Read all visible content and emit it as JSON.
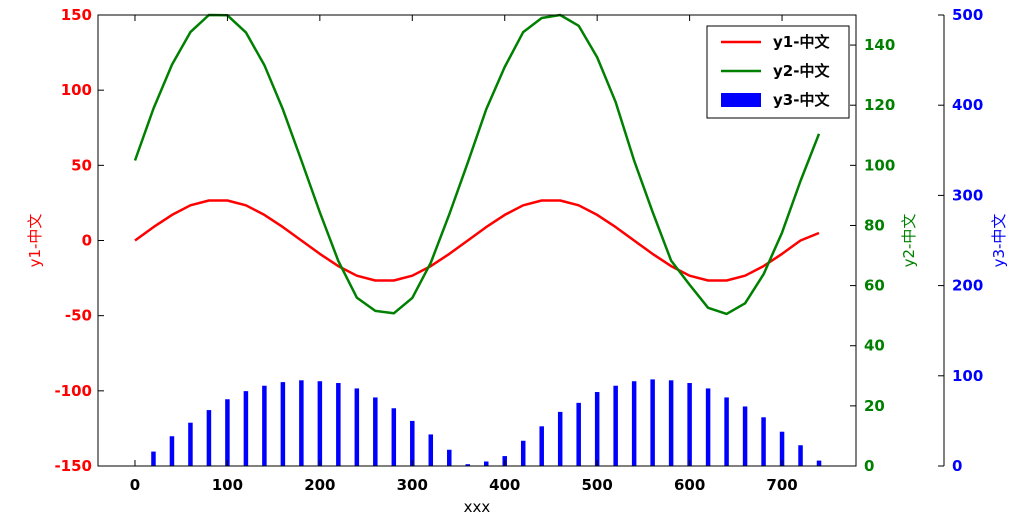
{
  "chart_data": {
    "type": "line",
    "xlabel": "xxx",
    "xlim": [
      -40,
      780
    ],
    "xticks": [
      0,
      100,
      200,
      300,
      400,
      500,
      600,
      700
    ],
    "series": [
      {
        "name": "y1-中文",
        "type": "line",
        "axis": "y1",
        "color": "#ff0000",
        "x": [
          0,
          20,
          40,
          60,
          80,
          100,
          120,
          140,
          160,
          180,
          200,
          220,
          240,
          260,
          280,
          300,
          320,
          340,
          360,
          380,
          400,
          420,
          440,
          460,
          480,
          500,
          520,
          540,
          560,
          580,
          600,
          620,
          640,
          660,
          680,
          700,
          720,
          740
        ],
        "values": [
          0.0,
          8.9,
          17.0,
          23.4,
          26.6,
          26.6,
          23.4,
          17.0,
          8.9,
          0.0,
          -8.9,
          -17.0,
          -23.4,
          -26.6,
          -26.6,
          -23.4,
          -17.0,
          -8.9,
          0.0,
          8.9,
          17.0,
          23.4,
          26.6,
          26.6,
          23.4,
          17.0,
          8.9,
          0.0,
          -8.9,
          -17.0,
          -23.4,
          -26.6,
          -26.6,
          -23.4,
          -17.0,
          -8.9,
          0.0,
          5.0
        ]
      },
      {
        "name": "y2-中文",
        "type": "line",
        "axis": "y2",
        "color": "#008000",
        "x": [
          0,
          20,
          40,
          60,
          80,
          100,
          120,
          140,
          160,
          180,
          200,
          220,
          240,
          260,
          280,
          300,
          320,
          340,
          360,
          380,
          400,
          420,
          440,
          460,
          480,
          500,
          520,
          540,
          560,
          580,
          600,
          620,
          640,
          660,
          680,
          700,
          720,
          740
        ],
        "values": [
          101.6,
          118.9,
          133.5,
          144.3,
          150.0,
          149.9,
          144.2,
          133.3,
          118.6,
          101.6,
          84.3,
          68.2,
          56.0,
          51.6,
          50.8,
          55.9,
          67.6,
          83.7,
          100.9,
          118.6,
          132.7,
          144.3,
          149.0,
          150.0,
          146.4,
          135.9,
          121.0,
          101.6,
          84.5,
          68.3,
          60.3,
          52.6,
          50.6,
          54.1,
          63.8,
          77.6,
          94.8,
          110.5
        ]
      },
      {
        "name": "y3-中文",
        "type": "bar",
        "axis": "y3",
        "color": "#0000ff",
        "x": [
          0,
          20,
          40,
          60,
          80,
          100,
          120,
          140,
          160,
          180,
          200,
          220,
          240,
          260,
          280,
          300,
          320,
          340,
          360,
          380,
          400,
          420,
          440,
          460,
          480,
          500,
          520,
          540,
          560,
          580,
          600,
          620,
          640,
          660,
          680,
          700,
          720,
          740
        ],
        "values": [
          0,
          16,
          33,
          48,
          62,
          74,
          83,
          89,
          93,
          95,
          94,
          92,
          86,
          76,
          64,
          50,
          35,
          18,
          2,
          5,
          11,
          28,
          44,
          60,
          70,
          82,
          89,
          94,
          96,
          95,
          92,
          86,
          76,
          66,
          54,
          38,
          23,
          6
        ]
      }
    ],
    "y1": {
      "label": "y1-中文",
      "ylim": [
        -150,
        150
      ],
      "ticks": [
        -150,
        -100,
        -50,
        0,
        50,
        100,
        150
      ],
      "color": "#ff0000"
    },
    "y2": {
      "label": "y2-中文",
      "ylim": [
        0,
        150
      ],
      "ticks": [
        0,
        20,
        40,
        60,
        80,
        100,
        120,
        140
      ],
      "color": "#008000"
    },
    "y3": {
      "label": "y3-中文",
      "ylim": [
        0,
        500
      ],
      "ticks": [
        0,
        100,
        200,
        300,
        400,
        500
      ],
      "color": "#0000ff"
    },
    "legend": {
      "placement": "top-right",
      "entries": [
        {
          "label": "y1-中文",
          "color": "#ff0000",
          "kind": "line"
        },
        {
          "label": "y2-中文",
          "color": "#008000",
          "kind": "line"
        },
        {
          "label": "y3-中文",
          "color": "#0000ff",
          "kind": "bar"
        }
      ]
    },
    "grid": false
  }
}
